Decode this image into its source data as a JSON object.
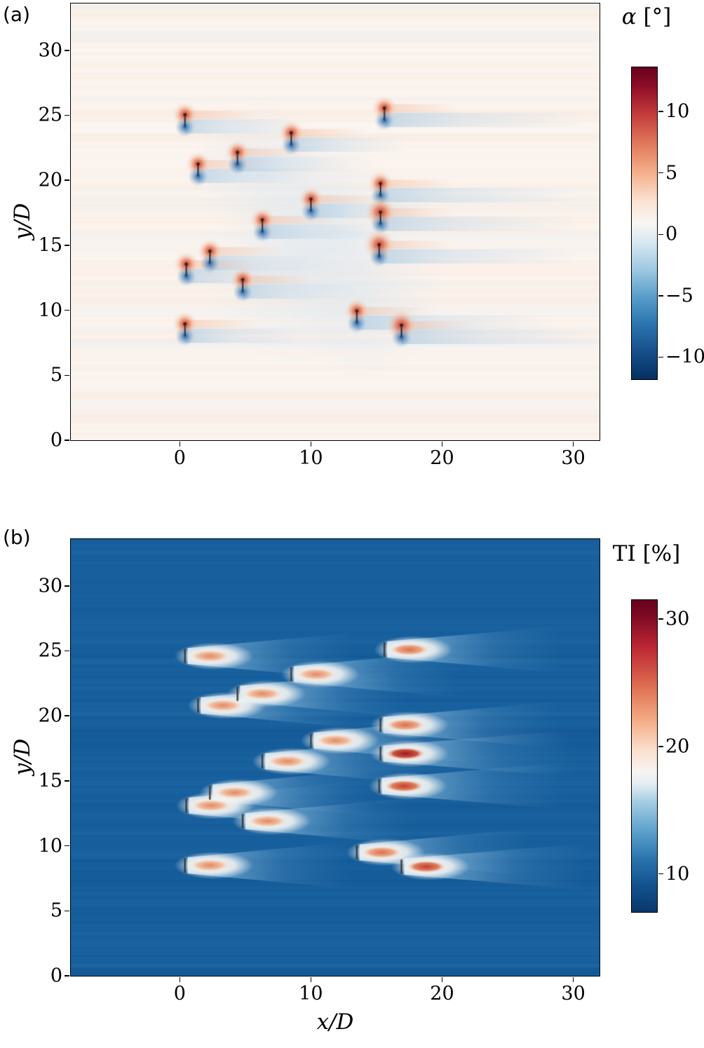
{
  "figure": {
    "panel_a_label": "(a)",
    "panel_b_label": "(b)"
  },
  "chart_data": [
    {
      "type": "heatmap",
      "panel_label": "(a)",
      "ylabel": "y/D",
      "xlim": [
        -8.3,
        32.0
      ],
      "ylim": [
        0.0,
        33.6
      ],
      "xticks": [
        0,
        10,
        20,
        30
      ],
      "yticks": [
        0,
        5,
        10,
        15,
        20,
        25,
        30
      ],
      "grid": false,
      "background_color": "#fcf4ee",
      "colorbar": {
        "symbol": "α",
        "unit": "[°]",
        "range": [
          -11.8,
          13.6
        ],
        "ticks": [
          10,
          5,
          0,
          -5,
          -10
        ],
        "tick_labels": [
          "10",
          "5",
          "0",
          "−5",
          "−10"
        ],
        "stops": [
          [
            "#053061",
            0
          ],
          [
            "#174f8c",
            0.09
          ],
          [
            "#2d76b0",
            0.18
          ],
          [
            "#5ba0cb",
            0.27
          ],
          [
            "#9dc8e0",
            0.35
          ],
          [
            "#d9e8f1",
            0.44
          ],
          [
            "#f8f6f3",
            0.5
          ],
          [
            "#fbe3d4",
            0.57
          ],
          [
            "#f5b08d",
            0.66
          ],
          [
            "#e27c5d",
            0.75
          ],
          [
            "#c33b3b",
            0.85
          ],
          [
            "#8c0d25",
            0.94
          ],
          [
            "#67001f",
            1
          ]
        ]
      },
      "turbines_format": [
        "x",
        "y",
        "strength"
      ],
      "turbines": [
        [
          0.4,
          24.6,
          1.0
        ],
        [
          15.6,
          25.1,
          1.15
        ],
        [
          8.5,
          23.2,
          0.95
        ],
        [
          4.4,
          21.7,
          1.0
        ],
        [
          1.4,
          20.8,
          0.9
        ],
        [
          15.3,
          19.3,
          1.15
        ],
        [
          10.0,
          18.1,
          1.0
        ],
        [
          15.3,
          17.1,
          1.45
        ],
        [
          6.3,
          16.5,
          1.0
        ],
        [
          15.2,
          14.6,
          1.3
        ],
        [
          2.3,
          14.1,
          0.9
        ],
        [
          0.5,
          13.1,
          0.85
        ],
        [
          4.8,
          11.9,
          1.0
        ],
        [
          13.5,
          9.5,
          1.05
        ],
        [
          0.4,
          8.5,
          0.9
        ],
        [
          16.9,
          8.4,
          1.3
        ]
      ]
    },
    {
      "type": "heatmap",
      "panel_label": "(b)",
      "xlabel": "x/D",
      "ylabel": "y/D",
      "xlim": [
        -8.3,
        32.0
      ],
      "ylim": [
        0.0,
        33.6
      ],
      "xticks": [
        0,
        10,
        20,
        30
      ],
      "yticks": [
        0,
        5,
        10,
        15,
        20,
        25,
        30
      ],
      "grid": false,
      "background_color": "#175f9d",
      "colorbar": {
        "symbol": "TI",
        "unit": "[%]",
        "range": [
          7.0,
          31.5
        ],
        "ticks": [
          30,
          20,
          10
        ],
        "tick_labels": [
          "30",
          "20",
          "10"
        ],
        "stops": [
          [
            "#09386b",
            0
          ],
          [
            "#11508d",
            0.08
          ],
          [
            "#2a74ae",
            0.17
          ],
          [
            "#5da1cc",
            0.26
          ],
          [
            "#a2cbe1",
            0.35
          ],
          [
            "#e2edf3",
            0.41
          ],
          [
            "#f7f4f1",
            0.45
          ],
          [
            "#fadfcd",
            0.52
          ],
          [
            "#f3a981",
            0.62
          ],
          [
            "#dd6a50",
            0.73
          ],
          [
            "#bc2633",
            0.85
          ],
          [
            "#7c0a22",
            0.95
          ],
          [
            "#67001f",
            1
          ]
        ]
      },
      "turbines_format": [
        "x",
        "y",
        "strength"
      ],
      "turbines": [
        [
          0.4,
          24.6,
          1.0
        ],
        [
          15.6,
          25.1,
          1.15
        ],
        [
          8.5,
          23.2,
          0.95
        ],
        [
          4.4,
          21.7,
          1.0
        ],
        [
          1.4,
          20.8,
          0.9
        ],
        [
          15.3,
          19.3,
          1.15
        ],
        [
          10.0,
          18.1,
          1.0
        ],
        [
          15.3,
          17.1,
          1.45
        ],
        [
          6.3,
          16.5,
          1.0
        ],
        [
          15.2,
          14.6,
          1.3
        ],
        [
          2.3,
          14.1,
          0.9
        ],
        [
          0.5,
          13.1,
          0.85
        ],
        [
          4.8,
          11.9,
          1.0
        ],
        [
          13.5,
          9.5,
          1.05
        ],
        [
          0.4,
          8.5,
          0.9
        ],
        [
          16.9,
          8.4,
          1.3
        ]
      ]
    }
  ]
}
